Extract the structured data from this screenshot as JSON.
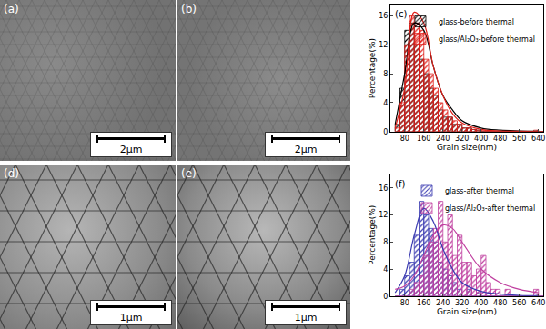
{
  "panels": [
    {
      "label": "(a)",
      "scale_bar": "2μm"
    },
    {
      "label": "(b)",
      "scale_bar": "2μm"
    },
    {
      "label": "(d)",
      "scale_bar": "1μm"
    },
    {
      "label": "(e)",
      "scale_bar": "1μm"
    }
  ],
  "chart_data": [
    {
      "type": "histogram",
      "annotation": "(c)",
      "x_label": "Grain size(nm)",
      "y_label": "Percentage(%)",
      "bins": [
        40,
        60,
        80,
        100,
        120,
        140,
        160,
        180,
        200,
        220,
        240,
        260,
        280,
        300,
        320,
        340,
        360,
        380,
        400,
        420,
        440,
        460,
        480,
        500,
        520,
        540,
        560,
        580,
        600,
        620,
        640,
        660
      ],
      "series": [
        {
          "name": "glass-before thermal",
          "color": "#000000",
          "values": [
            1,
            6,
            14,
            15,
            12,
            10,
            8,
            6,
            5,
            3,
            2,
            2,
            1,
            1,
            0.5,
            0.5,
            0.3,
            0.2,
            0,
            0,
            0,
            0,
            0,
            0,
            0,
            0,
            0,
            0,
            0,
            0,
            0
          ]
        },
        {
          "name": "glass/Al₂O₃-before thermal",
          "color": "#e0201a",
          "values": [
            0.5,
            4,
            12,
            16,
            15,
            14,
            10,
            8,
            6,
            4,
            3,
            2,
            1.5,
            1,
            0.5,
            0.5,
            0.3,
            0.2,
            0.2,
            0,
            0,
            0,
            0,
            0,
            0,
            0,
            0,
            0,
            0,
            0.2,
            0
          ]
        },
        {
          "type": "line",
          "color": "#000000",
          "x": [
            40,
            80,
            120,
            160,
            200,
            240,
            280,
            320,
            400,
            480,
            560,
            640
          ],
          "values": [
            1,
            8,
            15,
            14,
            9,
            5,
            3,
            1.5,
            0.5,
            0.2,
            0.1,
            0.05
          ]
        },
        {
          "type": "line",
          "color": "#e0201a",
          "x": [
            40,
            80,
            120,
            160,
            200,
            240,
            280,
            320,
            400,
            480,
            560,
            640
          ],
          "values": [
            0.5,
            6,
            16.5,
            15,
            9,
            5,
            2.5,
            1.2,
            0.3,
            0.1,
            0.05,
            0.02
          ]
        }
      ],
      "xlim": [
        20,
        660
      ],
      "xticks": [
        80,
        160,
        240,
        320,
        400,
        480,
        560,
        640
      ],
      "ylim": [
        0,
        17.5
      ],
      "yticks": [
        0,
        4,
        8,
        12,
        16
      ],
      "legend": "upper right"
    },
    {
      "type": "histogram",
      "annotation": "(f)",
      "x_label": "Grain size(nm)",
      "y_label": "Percentage(%)",
      "bins": [
        40,
        60,
        80,
        100,
        120,
        140,
        160,
        180,
        200,
        220,
        240,
        260,
        280,
        300,
        320,
        340,
        360,
        380,
        400,
        420,
        440,
        460,
        480,
        500,
        520,
        540,
        560,
        580,
        600,
        620,
        640,
        660
      ],
      "series": [
        {
          "name": "glass-after thermal",
          "color": "#3a3ab0",
          "values": [
            0,
            1,
            3,
            5,
            9,
            14,
            12,
            10,
            8,
            5,
            4,
            3,
            2,
            1,
            0,
            1,
            0,
            0.5,
            0,
            0,
            0,
            0,
            0,
            0,
            0,
            0,
            0,
            0,
            0,
            0,
            0
          ]
        },
        {
          "name": "glass/Al₂O₃-after thermal",
          "color": "#c040a0",
          "values": [
            0,
            0,
            0,
            1,
            2,
            3,
            6,
            8,
            10,
            14,
            8,
            12,
            6,
            9,
            5,
            5,
            3,
            4,
            6,
            2,
            1,
            1,
            0,
            1,
            0,
            0,
            0,
            0,
            0,
            1,
            0
          ]
        },
        {
          "type": "line",
          "color": "#3a3ab0",
          "x": [
            40,
            80,
            120,
            160,
            200,
            240,
            280,
            320,
            400,
            480,
            560,
            640
          ],
          "values": [
            0.5,
            3,
            9,
            13,
            11,
            7,
            4,
            2,
            0.7,
            0.3,
            0.1,
            0.05
          ]
        },
        {
          "type": "line",
          "color": "#c040a0",
          "x": [
            40,
            80,
            120,
            160,
            200,
            240,
            280,
            320,
            400,
            480,
            560,
            640
          ],
          "values": [
            1,
            1.5,
            3,
            6,
            9,
            10.5,
            10,
            8,
            4,
            2,
            1,
            0.5
          ]
        }
      ],
      "xlim": [
        20,
        660
      ],
      "xticks": [
        80,
        160,
        240,
        320,
        400,
        480,
        560,
        640
      ],
      "ylim": [
        0,
        18
      ],
      "yticks": [
        0,
        4,
        8,
        12,
        16
      ],
      "legend": "upper right"
    }
  ]
}
